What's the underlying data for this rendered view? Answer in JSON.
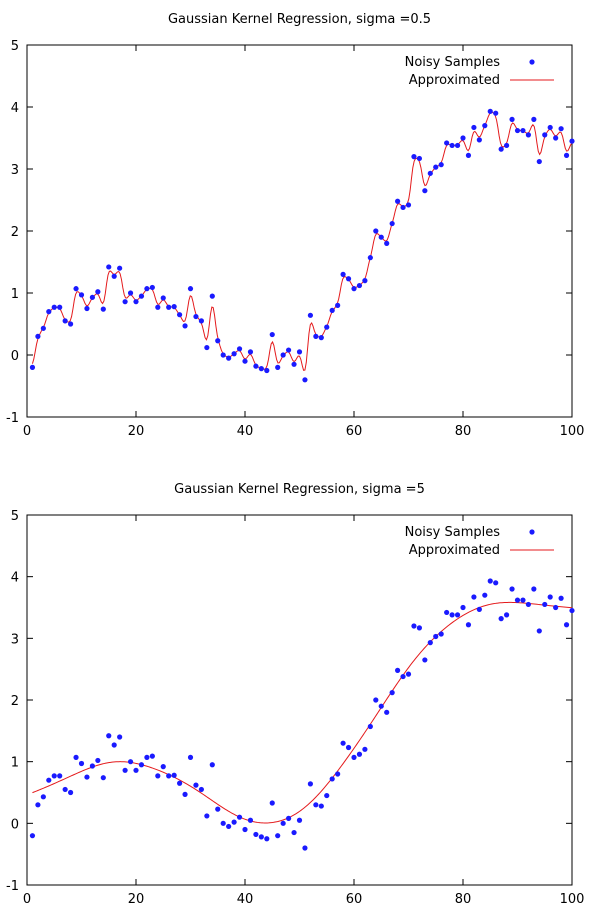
{
  "chart_data": [
    {
      "type": "scatter",
      "title": "Gaussian Kernel Regression, sigma =0.5",
      "xlabel": "",
      "ylabel": "",
      "xlim": [
        0,
        100
      ],
      "ylim": [
        -1,
        5
      ],
      "xticks": [
        "0",
        "20",
        "40",
        "60",
        "80",
        "100"
      ],
      "yticks": [
        "-1",
        "0",
        "1",
        "2",
        "3",
        "4",
        "5"
      ],
      "legend_position": "top-right",
      "grid": false,
      "series": [
        {
          "name": "Noisy Samples",
          "type": "scatter",
          "color": "#1a1aff",
          "x": [
            1,
            2,
            3,
            4,
            5,
            6,
            7,
            8,
            9,
            10,
            11,
            12,
            13,
            14,
            15,
            16,
            17,
            18,
            19,
            20,
            21,
            22,
            23,
            24,
            25,
            26,
            27,
            28,
            29,
            30,
            31,
            32,
            33,
            34,
            35,
            36,
            37,
            38,
            39,
            40,
            41,
            42,
            43,
            44,
            45,
            46,
            47,
            48,
            49,
            50,
            51,
            52,
            53,
            54,
            55,
            56,
            57,
            58,
            59,
            60,
            61,
            62,
            63,
            64,
            65,
            66,
            67,
            68,
            69,
            70,
            71,
            72,
            73,
            74,
            75,
            76,
            77,
            78,
            79,
            80,
            81,
            82,
            83,
            84,
            85,
            86,
            87,
            88,
            89,
            90,
            91,
            92,
            93,
            94,
            95,
            96,
            97,
            98,
            99,
            100
          ],
          "y": [
            -0.2,
            0.3,
            0.43,
            0.7,
            0.77,
            0.77,
            0.55,
            0.5,
            1.07,
            0.97,
            0.75,
            0.93,
            1.02,
            0.74,
            1.42,
            1.27,
            1.4,
            0.86,
            1.0,
            0.86,
            0.95,
            1.07,
            1.09,
            0.77,
            0.92,
            0.77,
            0.78,
            0.65,
            0.47,
            1.07,
            0.62,
            0.55,
            0.12,
            0.95,
            0.23,
            0.0,
            -0.05,
            0.02,
            0.1,
            -0.1,
            0.05,
            -0.18,
            -0.22,
            -0.25,
            0.33,
            -0.2,
            0.0,
            0.08,
            -0.15,
            0.05,
            -0.4,
            0.64,
            0.3,
            0.28,
            0.45,
            0.72,
            0.8,
            1.3,
            1.23,
            1.07,
            1.12,
            1.2,
            1.57,
            2.0,
            1.9,
            1.8,
            2.12,
            2.48,
            2.38,
            2.42,
            3.2,
            3.17,
            2.65,
            2.93,
            3.03,
            3.07,
            3.42,
            3.38,
            3.38,
            3.5,
            3.22,
            3.67,
            3.47,
            3.7,
            3.93,
            3.9,
            3.32,
            3.38,
            3.8,
            3.62,
            3.62,
            3.55,
            3.8,
            3.12,
            3.55,
            3.67,
            3.5,
            3.65,
            3.22,
            3.45
          ]
        },
        {
          "name": "Approximated",
          "type": "line",
          "color": "#e41a1c",
          "source": "Noisy Samples",
          "sigma": 0.5
        }
      ]
    },
    {
      "type": "scatter",
      "title": "Gaussian Kernel Regression, sigma =5",
      "xlabel": "",
      "ylabel": "",
      "xlim": [
        0,
        100
      ],
      "ylim": [
        -1,
        5
      ],
      "xticks": [
        "0",
        "20",
        "40",
        "60",
        "80",
        "100"
      ],
      "yticks": [
        "-1",
        "0",
        "1",
        "2",
        "3",
        "4",
        "5"
      ],
      "legend_position": "top-right",
      "grid": false,
      "series": [
        {
          "name": "Noisy Samples",
          "type": "scatter",
          "color": "#1a1aff",
          "x": [
            1,
            2,
            3,
            4,
            5,
            6,
            7,
            8,
            9,
            10,
            11,
            12,
            13,
            14,
            15,
            16,
            17,
            18,
            19,
            20,
            21,
            22,
            23,
            24,
            25,
            26,
            27,
            28,
            29,
            30,
            31,
            32,
            33,
            34,
            35,
            36,
            37,
            38,
            39,
            40,
            41,
            42,
            43,
            44,
            45,
            46,
            47,
            48,
            49,
            50,
            51,
            52,
            53,
            54,
            55,
            56,
            57,
            58,
            59,
            60,
            61,
            62,
            63,
            64,
            65,
            66,
            67,
            68,
            69,
            70,
            71,
            72,
            73,
            74,
            75,
            76,
            77,
            78,
            79,
            80,
            81,
            82,
            83,
            84,
            85,
            86,
            87,
            88,
            89,
            90,
            91,
            92,
            93,
            94,
            95,
            96,
            97,
            98,
            99,
            100
          ],
          "y": [
            -0.2,
            0.3,
            0.43,
            0.7,
            0.77,
            0.77,
            0.55,
            0.5,
            1.07,
            0.97,
            0.75,
            0.93,
            1.02,
            0.74,
            1.42,
            1.27,
            1.4,
            0.86,
            1.0,
            0.86,
            0.95,
            1.07,
            1.09,
            0.77,
            0.92,
            0.77,
            0.78,
            0.65,
            0.47,
            1.07,
            0.62,
            0.55,
            0.12,
            0.95,
            0.23,
            0.0,
            -0.05,
            0.02,
            0.1,
            -0.1,
            0.05,
            -0.18,
            -0.22,
            -0.25,
            0.33,
            -0.2,
            0.0,
            0.08,
            -0.15,
            0.05,
            -0.4,
            0.64,
            0.3,
            0.28,
            0.45,
            0.72,
            0.8,
            1.3,
            1.23,
            1.07,
            1.12,
            1.2,
            1.57,
            2.0,
            1.9,
            1.8,
            2.12,
            2.48,
            2.38,
            2.42,
            3.2,
            3.17,
            2.65,
            2.93,
            3.03,
            3.07,
            3.42,
            3.38,
            3.38,
            3.5,
            3.22,
            3.67,
            3.47,
            3.7,
            3.93,
            3.9,
            3.32,
            3.38,
            3.8,
            3.62,
            3.62,
            3.55,
            3.8,
            3.12,
            3.55,
            3.67,
            3.5,
            3.65,
            3.22,
            3.45
          ]
        },
        {
          "name": "Approximated",
          "type": "line",
          "color": "#e41a1c",
          "source": "Noisy Samples",
          "sigma": 5
        }
      ]
    }
  ]
}
